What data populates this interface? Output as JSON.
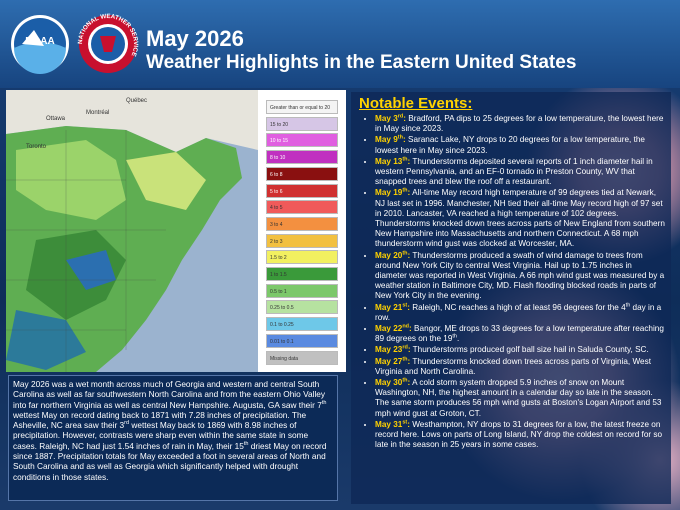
{
  "header": {
    "title_line1": "May 2026",
    "title_line2": "Weather Highlights in the Eastern United States",
    "noaa_logo": "NOAA",
    "nws_logo": "NATIONAL WEATHER SERVICE"
  },
  "map": {
    "places": [
      "Québec",
      "Ottawa",
      "Montréal",
      "Toronto"
    ],
    "legend": [
      "Greater than or equal to 20",
      "15 to 20",
      "10 to 15",
      "8 to 10",
      "6 to 8",
      "5 to 6",
      "4 to 5",
      "3 to 4",
      "2 to 3",
      "1.5 to 2",
      "1 to 1.5",
      "0.5 to 1",
      "0.25 to 0.5",
      "0.1 to 0.25",
      "0.01 to 0.1",
      "Missing data"
    ]
  },
  "summary": {
    "parts": [
      {
        "text": "May 2026 was a wet month across much of Georgia and western and central South Carolina as well as far southwestern North Carolina and from the eastern Ohio Valley into far northern Virginia as well as central New Hampshire. Augusta, GA saw their 7"
      },
      {
        "sup": "th"
      },
      {
        "text": " wettest May on record dating back to 1871 with 7.28 inches of precipitation. The Asheville, NC area saw their 3"
      },
      {
        "sup": "rd"
      },
      {
        "text": " wettest May back to 1869 with 8.98 inches of precipitation. However, contrasts were sharp even within the same state in some cases. Raleigh, NC had just 1.54 inches of rain in May, their 15"
      },
      {
        "sup": "th"
      },
      {
        "text": " driest May on record since 1887. Precipitation totals for May exceeded a foot in several areas of North and South Carolina and as well as Georgia which significantly helped with drought conditions in those states."
      }
    ]
  },
  "events": {
    "title": "Notable Events:",
    "items": [
      [
        {
          "date": "May 3"
        },
        {
          "date_sup": "rd"
        },
        {
          "date": ":"
        },
        {
          "text": " Bradford, PA dips to 25 degrees for a low temperature, the lowest here in May since 2023."
        }
      ],
      [
        {
          "date": "May 9"
        },
        {
          "date_sup": "th"
        },
        {
          "date": ":"
        },
        {
          "text": " Saranac Lake, NY drops to 20 degrees for a low temperature, the lowest here in May since 2023."
        }
      ],
      [
        {
          "date": "May 13"
        },
        {
          "date_sup": "th"
        },
        {
          "date": ":"
        },
        {
          "text": " Thunderstorms deposited several reports of 1 inch diameter hail in western Pennsylvania, and an EF-0 tornado in Preston County, WV that snapped trees and blew the roof off a restaurant."
        }
      ],
      [
        {
          "date": "May 19"
        },
        {
          "date_sup": "th"
        },
        {
          "date": ":"
        },
        {
          "text": " All-time May record high temperature of 99 degrees tied at Newark, NJ last set in 1996. Manchester, NH tied their all-time May record high of 97 set in 2010. Lancaster, VA reached a high temperature of 102 degrees. Thunderstorms knocked down trees across parts of New England from southern New Hampshire into Massachusetts and northern Connecticut. A 68 mph thunderstorm wind gust was clocked at Worcester, MA."
        }
      ],
      [
        {
          "date": "May 20"
        },
        {
          "date_sup": "th"
        },
        {
          "date": ":"
        },
        {
          "text": " Thunderstorms produced a swath of wind damage to trees from around New York City to central West Virginia. Hail up to 1.75 inches in diameter was reported in West Virginia. A 66 mph wind gust was measured by a weather station in Baltimore City, MD. Flash flooding blocked roads in parts of New York City in the evening."
        }
      ],
      [
        {
          "date": "May 21"
        },
        {
          "date_sup": "st"
        },
        {
          "date": ":"
        },
        {
          "text": " Raleigh, NC reaches a high of at least 96 degrees for the 4"
        },
        {
          "sup": "th"
        },
        {
          "text": " day in a row."
        }
      ],
      [
        {
          "date": "May 22"
        },
        {
          "date_sup": "nd"
        },
        {
          "date": ":"
        },
        {
          "text": " Bangor, ME drops to 33 degrees for a low temperature after reaching 89 degrees on the 19"
        },
        {
          "sup": "th"
        },
        {
          "text": "."
        }
      ],
      [
        {
          "date": "May 23"
        },
        {
          "date_sup": "rd"
        },
        {
          "date": ":"
        },
        {
          "text": " Thunderstorms produced golf ball size hail in Saluda County, SC."
        }
      ],
      [
        {
          "date": "May 27"
        },
        {
          "date_sup": "th"
        },
        {
          "date": ":"
        },
        {
          "text": " Thunderstorms knocked down trees across parts of Virginia, West Virginia and North Carolina."
        }
      ],
      [
        {
          "date": "May 30"
        },
        {
          "date_sup": "th"
        },
        {
          "date": ":"
        },
        {
          "text": " A cold storm system dropped 5.9 inches of snow on Mount Washington, NH, the highest amount in a calendar day so late in the season. The same storm produces 56 mph wind gusts at Boston's Logan Airport and 53 mph wind gust at Groton, CT."
        }
      ],
      [
        {
          "date": "May 31"
        },
        {
          "date_sup": "st"
        },
        {
          "date": ":"
        },
        {
          "text": " Westhampton, NY drops to 31 degrees for a low, the latest freeze on record here. Lows on parts of Long Island, NY drop the coldest on record for so late in the season in 25 years in some cases."
        }
      ]
    ]
  }
}
